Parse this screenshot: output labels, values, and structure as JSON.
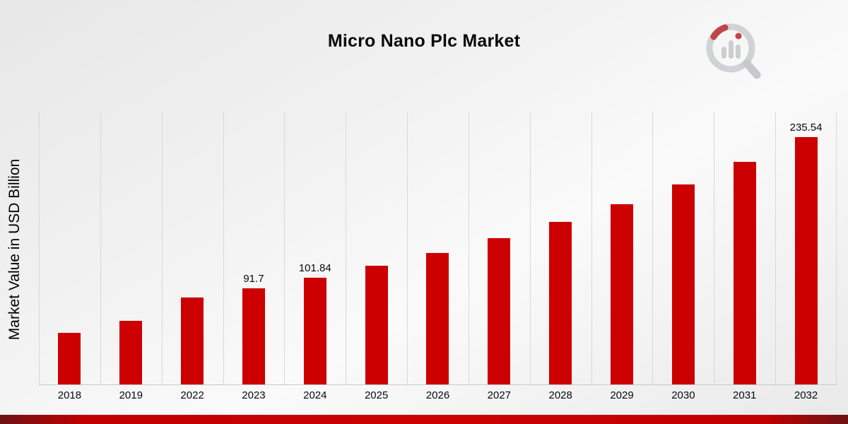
{
  "page": {
    "title": "Micro Nano Plc Market",
    "y_axis_label": "Market Value in USD Billion",
    "accent_color": "#cc0000",
    "logo_icon": "magnifier-bar-chart-logo"
  },
  "chart_data": {
    "type": "bar",
    "title": "Micro Nano Plc Market",
    "xlabel": "",
    "ylabel": "Market Value in USD Billion",
    "ylim": [
      0,
      260
    ],
    "grid": "vertical-only",
    "legend": "none",
    "bar_color": "#cc0000",
    "categories": [
      "2018",
      "2019",
      "2022",
      "2023",
      "2024",
      "2025",
      "2026",
      "2027",
      "2028",
      "2029",
      "2030",
      "2031",
      "2032"
    ],
    "values": [
      49.5,
      60.3,
      82.6,
      91.7,
      101.84,
      113.1,
      125.6,
      139.4,
      154.8,
      171.9,
      190.9,
      212.0,
      235.54
    ],
    "data_labels": [
      "",
      "",
      "",
      "91.7",
      "101.84",
      "",
      "",
      "",
      "",
      "",
      "",
      "",
      "235.54"
    ]
  }
}
